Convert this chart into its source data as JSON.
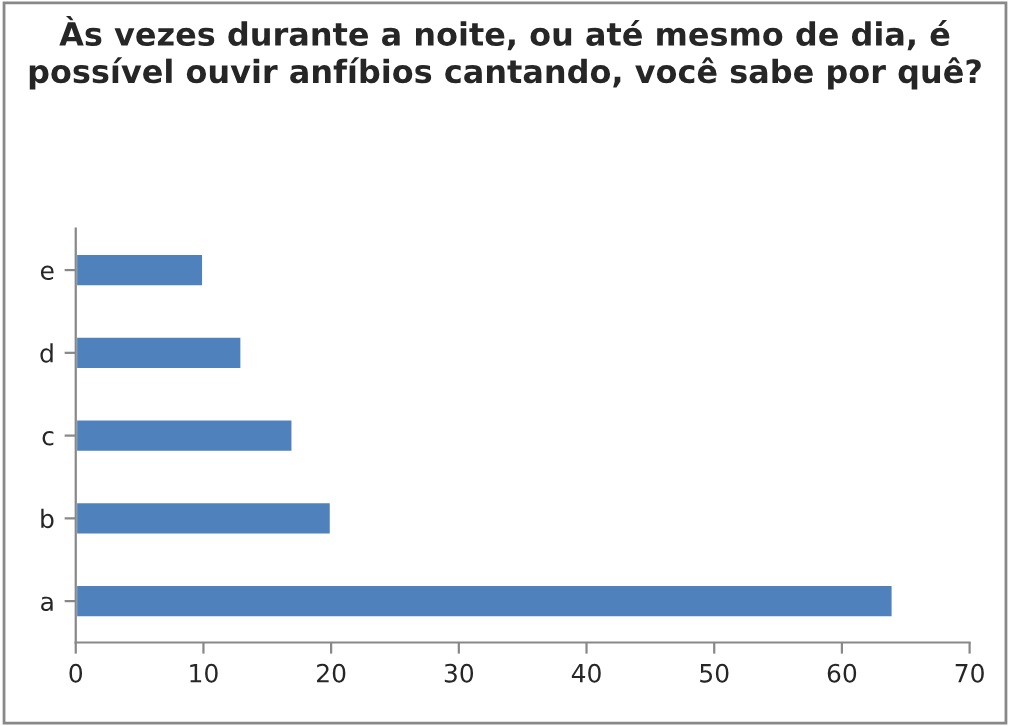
{
  "chart_data": {
    "type": "bar",
    "orientation": "horizontal",
    "title": "Às vezes durante a noite, ou até mesmo de dia, é possível ouvir anfíbios cantando, você sabe por quê?",
    "categories": [
      "e",
      "d",
      "c",
      "b",
      "a"
    ],
    "values": [
      10,
      13,
      17,
      20,
      64
    ],
    "color": "#4f81bd",
    "xlim": [
      0,
      70
    ],
    "xticks": [
      0,
      10,
      20,
      30,
      40,
      50,
      60,
      70
    ],
    "grid": false,
    "legend": false
  }
}
